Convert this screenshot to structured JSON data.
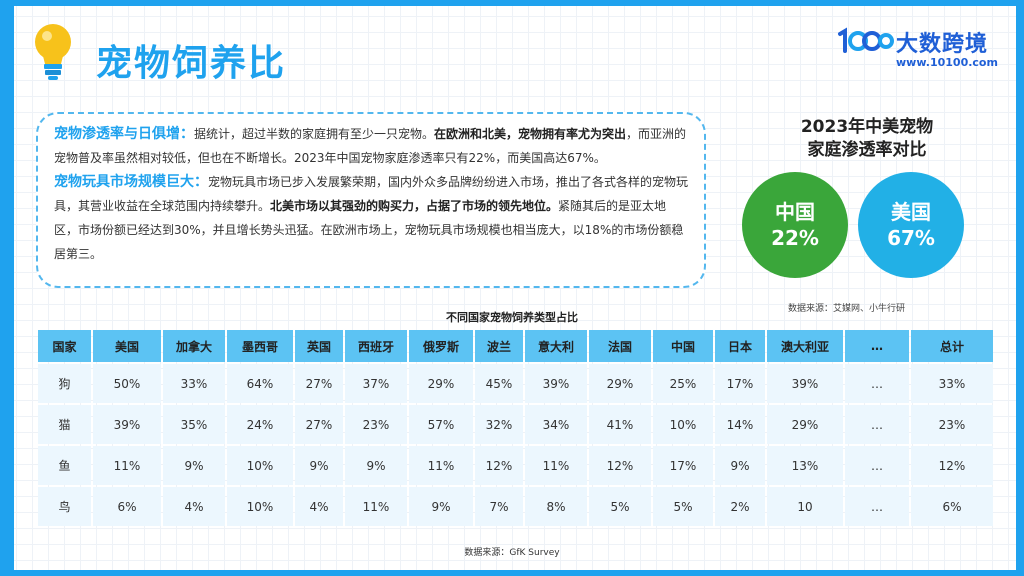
{
  "title": "宠物饲养比",
  "logo": {
    "name": "大数跨境",
    "url": "www.10100.com"
  },
  "paragraphs": {
    "p1": {
      "head": "宠物渗透率与日俱增：",
      "t1": "据统计，超过半数的家庭拥有至少一只宠物。",
      "b1": "在欧洲和北美，宠物拥有率尤为突出",
      "t2": "，而亚洲的宠物普及率虽然相对较低，但也在不断增长。2023年中国宠物家庭渗透率只有22%，而美国高达67%。"
    },
    "p2": {
      "head": "宠物玩具市场规模巨大：",
      "t1": "宠物玩具市场已步入发展繁荣期，国内外众多品牌纷纷进入市场，推出了各式各样的宠物玩具，其营业收益在全球范围内持续攀升。",
      "b1": "北美市场以其强劲的购买力，占据了市场的领先地位。",
      "t2": "紧随其后的是亚太地区，市场份额已经达到30%，并且增长势头迅猛。在欧洲市场上，宠物玩具市场规模也相当庞大，以18%的市场份额稳居第三。"
    }
  },
  "compare": {
    "title_line1": "2023年中美宠物",
    "title_line2": "家庭渗透率对比",
    "china": {
      "label": "中国",
      "value": "22%"
    },
    "usa": {
      "label": "美国",
      "value": "67%"
    },
    "source": "数据来源：艾媒网、小牛行研",
    "colors": {
      "china": "#3aa63a",
      "usa": "#22b0e6"
    }
  },
  "table": {
    "title": "不同国家宠物饲养类型占比",
    "headers": [
      "国家",
      "美国",
      "加拿大",
      "墨西哥",
      "英国",
      "西班牙",
      "俄罗斯",
      "波兰",
      "意大利",
      "法国",
      "中国",
      "日本",
      "澳大利亚",
      "…",
      "总计"
    ],
    "rows": [
      [
        "狗",
        "50%",
        "33%",
        "64%",
        "27%",
        "37%",
        "29%",
        "45%",
        "39%",
        "29%",
        "25%",
        "17%",
        "39%",
        "…",
        "33%"
      ],
      [
        "猫",
        "39%",
        "35%",
        "24%",
        "27%",
        "23%",
        "57%",
        "32%",
        "34%",
        "41%",
        "10%",
        "14%",
        "29%",
        "…",
        "23%"
      ],
      [
        "鱼",
        "11%",
        "9%",
        "10%",
        "9%",
        "9%",
        "11%",
        "12%",
        "11%",
        "12%",
        "17%",
        "9%",
        "13%",
        "…",
        "12%"
      ],
      [
        "鸟",
        "6%",
        "4%",
        "10%",
        "4%",
        "11%",
        "9%",
        "7%",
        "8%",
        "5%",
        "5%",
        "2%",
        "10",
        "…",
        "6%"
      ]
    ],
    "source": "数据来源：GfK Survey"
  },
  "icons": {
    "title_icon": "lightbulb-icon",
    "logo_icon": "10100-logo-icon"
  },
  "colors": {
    "accent": "#1fa2ee",
    "header_fill": "#5cc3f3",
    "cell_fill": "#ecf7fe"
  }
}
